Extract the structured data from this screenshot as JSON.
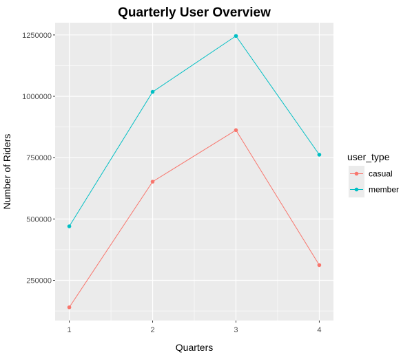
{
  "chart_data": {
    "type": "line",
    "title": "Quarterly User Overview",
    "xlabel": "Quarters",
    "ylabel": "Number of Riders",
    "x": [
      1,
      2,
      3,
      4
    ],
    "x_ticks": [
      "1",
      "2",
      "3",
      "4"
    ],
    "xlim": [
      0.83,
      4.17
    ],
    "y_ticks": [
      250000,
      500000,
      750000,
      1000000,
      1250000
    ],
    "y_tick_labels": [
      "250000",
      "500000",
      "750000",
      "1000000",
      "1250000"
    ],
    "ylim": [
      86000,
      1300000
    ],
    "grid": true,
    "legend": {
      "title": "user_type",
      "placement": "right"
    },
    "series": [
      {
        "name": "casual",
        "color": "#F8766D",
        "values": [
          140000,
          652000,
          862000,
          312000
        ]
      },
      {
        "name": "member",
        "color": "#00BFC4",
        "values": [
          470000,
          1018000,
          1246000,
          762000
        ]
      }
    ]
  },
  "colors": {
    "panel_background": "#EBEBEB",
    "grid_major": "#FFFFFF",
    "axis_text": "#4D4D4D"
  }
}
